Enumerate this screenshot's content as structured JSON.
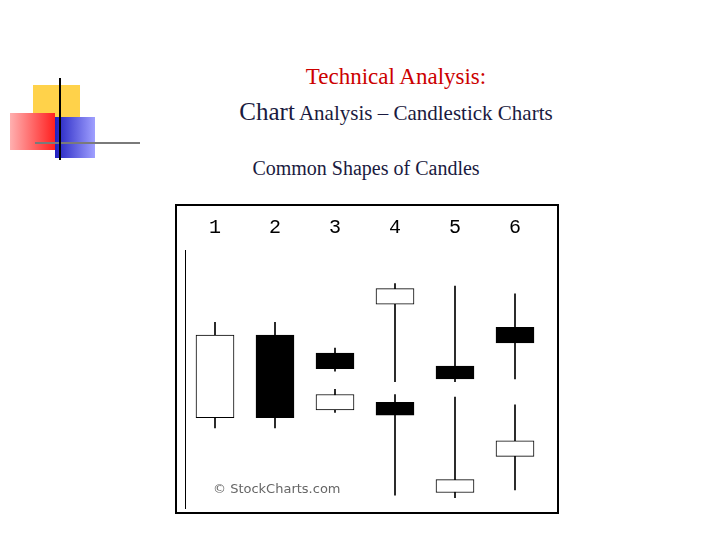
{
  "header": {
    "title": "Technical Analysis:",
    "subtitle_lead": "Chart",
    "subtitle": "Analysis – Candlestick Charts"
  },
  "chart_data": {
    "type": "candlestick",
    "title": "Common Shapes of Candles",
    "categories": [
      "1",
      "2",
      "3",
      "4",
      "5",
      "6"
    ],
    "series": [
      {
        "category": "1",
        "open": 35,
        "high": 72,
        "low": 31,
        "close": 67,
        "color": "#ffffff"
      },
      {
        "category": "2",
        "open": 67,
        "high": 72,
        "low": 31,
        "close": 35,
        "color": "#000000"
      },
      {
        "category": "3",
        "open": 60,
        "high": 62,
        "low": 53,
        "close": 54,
        "color": "#000000"
      },
      {
        "category": "3",
        "open": 38,
        "high": 46,
        "low": 37,
        "close": 44,
        "color": "#ffffff"
      },
      {
        "category": "4",
        "open": 79,
        "high": 87,
        "low": 49,
        "close": 85,
        "color": "#ffffff"
      },
      {
        "category": "4",
        "open": 41,
        "high": 44,
        "low": 5,
        "close": 36,
        "color": "#000000"
      },
      {
        "category": "5",
        "open": 55,
        "high": 86,
        "low": 49,
        "close": 50,
        "color": "#000000"
      },
      {
        "category": "5",
        "open": 6,
        "high": 43,
        "low": 4,
        "close": 11,
        "color": "#ffffff"
      },
      {
        "category": "6",
        "open": 70,
        "high": 83,
        "low": 50,
        "close": 64,
        "color": "#000000"
      },
      {
        "category": "6",
        "open": 20,
        "high": 40,
        "low": 7,
        "close": 26,
        "color": "#ffffff"
      }
    ],
    "ylim": [
      0,
      100
    ],
    "grid": false,
    "tick_labels": "x",
    "annotations": [
      "© StockCharts.com"
    ]
  }
}
